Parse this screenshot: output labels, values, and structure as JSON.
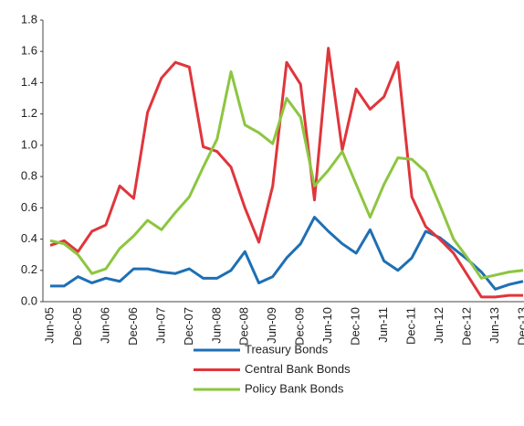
{
  "chart_data": {
    "type": "line",
    "categories": [
      "Jun-05",
      null,
      "Dec-05",
      null,
      "Jun-06",
      null,
      "Dec-06",
      null,
      "Jun-07",
      null,
      "Dec-07",
      null,
      "Jun-08",
      null,
      "Dec-08",
      null,
      "Jun-09",
      null,
      "Dec-09",
      null,
      "Jun-10",
      null,
      "Dec-10",
      null,
      "Jun-11",
      null,
      "Dec-11",
      null,
      "Jun-12",
      null,
      "Dec-12",
      null,
      "Jun-13",
      null,
      "Dec-13"
    ],
    "series": [
      {
        "name": "Treasury Bonds",
        "color": "#1f6fb4",
        "values": [
          0.1,
          0.1,
          0.16,
          0.12,
          0.15,
          0.13,
          0.21,
          0.21,
          0.19,
          0.18,
          0.21,
          0.15,
          0.15,
          0.2,
          0.32,
          0.12,
          0.16,
          0.28,
          0.37,
          0.54,
          0.45,
          0.37,
          0.31,
          0.46,
          0.26,
          0.2,
          0.28,
          0.45,
          0.41,
          0.34,
          0.27,
          0.19,
          0.08,
          0.11,
          0.13
        ]
      },
      {
        "name": "Central Bank Bonds",
        "color": "#e0353b",
        "values": [
          0.36,
          0.39,
          0.32,
          0.45,
          0.49,
          0.74,
          0.66,
          1.21,
          1.43,
          1.53,
          1.5,
          0.99,
          0.96,
          0.86,
          0.6,
          0.38,
          0.74,
          1.53,
          1.39,
          0.65,
          1.62,
          0.97,
          1.36,
          1.23,
          1.31,
          1.53,
          0.67,
          0.48,
          0.4,
          0.31,
          0.17,
          0.03,
          0.03,
          0.04,
          0.04
        ]
      },
      {
        "name": "Policy Bank Bonds",
        "color": "#8cc63f",
        "values": [
          0.39,
          0.37,
          0.3,
          0.18,
          0.21,
          0.34,
          0.42,
          0.52,
          0.46,
          0.57,
          0.67,
          0.86,
          1.04,
          1.47,
          1.13,
          1.08,
          1.01,
          1.3,
          1.18,
          0.74,
          0.84,
          0.96,
          0.75,
          0.54,
          0.75,
          0.92,
          0.91,
          0.83,
          0.62,
          0.4,
          0.28,
          0.15,
          0.17,
          0.19,
          0.2
        ]
      }
    ],
    "ylim": [
      0,
      1.8
    ],
    "yticks": [
      {
        "value": 0,
        "label": "0.0"
      },
      0.2,
      0.4,
      0.6,
      0.8,
      {
        "value": 1,
        "label": "1.0"
      },
      1.2,
      1.4,
      1.6,
      1.8
    ],
    "grid": false,
    "legend": "bottom"
  }
}
